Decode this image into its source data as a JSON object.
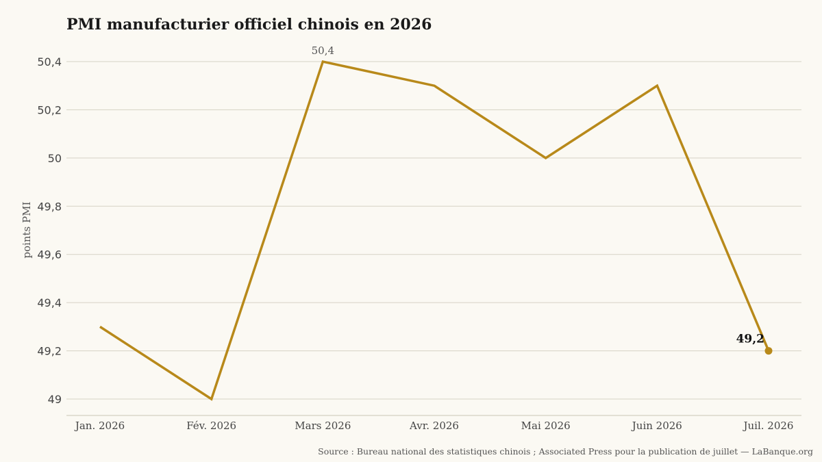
{
  "chart_data": {
    "type": "line",
    "title": "PMI manufacturier officiel chinois en 2026",
    "ylabel": "points PMI",
    "xlabel": "",
    "categories": [
      "Jan. 2026",
      "Fév. 2026",
      "Mars 2026",
      "Avr. 2026",
      "Mai 2026",
      "Juin 2026",
      "Juil. 2026"
    ],
    "series": [
      {
        "values": [
          49.3,
          49.0,
          50.4,
          50.3,
          50.0,
          50.3,
          49.2
        ]
      }
    ],
    "ylim": [
      49.0,
      50.4
    ],
    "yticks": [
      {
        "value": 49.0,
        "label": "49"
      },
      {
        "value": 49.2,
        "label": "49,2"
      },
      {
        "value": 49.4,
        "label": "49,4"
      },
      {
        "value": 49.6,
        "label": "49,6"
      },
      {
        "value": 49.8,
        "label": "49,8"
      },
      {
        "value": 50.0,
        "label": "50"
      },
      {
        "value": 50.2,
        "label": "50,2"
      },
      {
        "value": 50.4,
        "label": "50,4"
      }
    ],
    "annotations": [
      {
        "index": 2,
        "label": "50,4",
        "style": "peak"
      },
      {
        "index": 6,
        "label": "49,2",
        "style": "last"
      }
    ],
    "grid": true,
    "color": "#b8891a",
    "source": "Source : Bureau national des statistiques chinois ; Associated Press pour la publication de juillet — LaBanque.org"
  }
}
